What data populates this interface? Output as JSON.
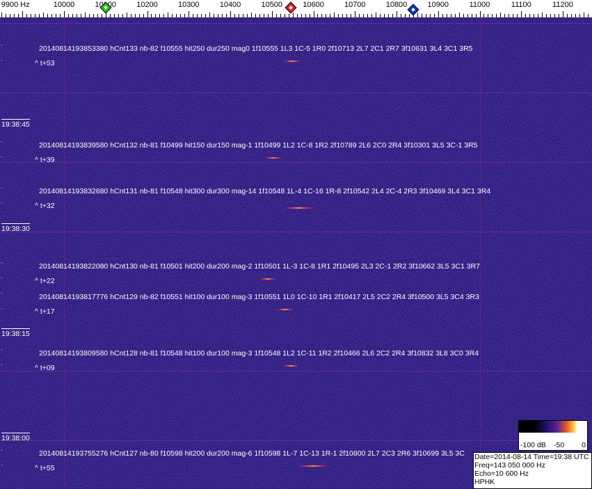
{
  "freq_axis": {
    "labels": [
      "9900 Hz",
      "10000",
      "10100",
      "10200",
      "10300",
      "10400",
      "10500",
      "10600",
      "10700",
      "10800",
      "10900",
      "11000",
      "11100",
      "11200"
    ],
    "markers": [
      {
        "name": "green",
        "color": "#20c020",
        "freq_hz": 10100
      },
      {
        "name": "red",
        "color": "#e02020",
        "freq_hz": 10545
      },
      {
        "name": "blue",
        "color": "#1030d0",
        "freq_hz": 10840
      }
    ]
  },
  "times": [
    "19:38:45",
    "19:38:30",
    "19:38:15",
    "19:38:00"
  ],
  "detections": [
    {
      "text": "20140814193853380 hCnt133 nb-82 f10555 hit250 dur250 mag0 1f10555 1L3 1C-5 1R0 2f10713 2L7 2C1 2R7 3f10631 3L4 3C1 3R5",
      "offset": "^ t+53"
    },
    {
      "text": "20140814193839580 hCnt132 nb-81 f10499 hit150 dur150 mag-1 1f10499 1L2 1C-8 1R2 2f10789 2L6 2C0 2R4 3f10301 3L5 3C-1 3R5",
      "offset": "^ t+39"
    },
    {
      "text": "20140814193832680 hCnt131 nb-81 f10548 hit300 dur300 mag-14 1f10548 1L-4 1C-16 1R-8 2f10542 2L4 2C-4 2R3 3f10469 3L4 3C1 3R4",
      "offset": "^ t+32"
    },
    {
      "text": "20140814193822080 hCnt130 nb-81 f10501 hit200 dur200 mag-2 1f10501 1L-3 1C-8 1R1 2f10495 2L3 2C-1 2R2 3f10662 3L5 3C1 3R7",
      "offset": "^ t+22"
    },
    {
      "text": "20140814193817776 hCnt129 nb-82 f10551 hit100 dur100 mag-3 1f10551 1L0 1C-10 1R1 2f10417 2L5 2C2 2R4 3f10500 3L5 3C4 3R3",
      "offset": "^ t+17"
    },
    {
      "text": "20140814193809580 hCnt128 nb-81 f10548 hit100 dur100 mag-3 1f10548 1L2 1C-11 1R2 2f10466 2L6 2C2 2R4 3f10832 3L8 3C0 3R4",
      "offset": "^ t+09"
    },
    {
      "text": "20140814193755276 hCnt127 nb-80 f10598 hit200 dur200 mag-6 1f10598 1L-7 1C-13 1R-1 2f10800 2L7 2C3 2R6 3f10699 3L5 3C",
      "offset": "^ t+55"
    }
  ],
  "colorscale": {
    "labels": [
      "-100 dB",
      "-50",
      "0"
    ]
  },
  "info": {
    "line1": "Date=2014-08-14 Time=19:38 UTC",
    "line2": "Freq=143 050 000 Hz",
    "line3": "Echo=10 600 Hz",
    "line4": "HPHK"
  },
  "colors": {
    "background": "#1c1270",
    "gridline": "#7a2a9a",
    "echo": "#ff9030"
  }
}
